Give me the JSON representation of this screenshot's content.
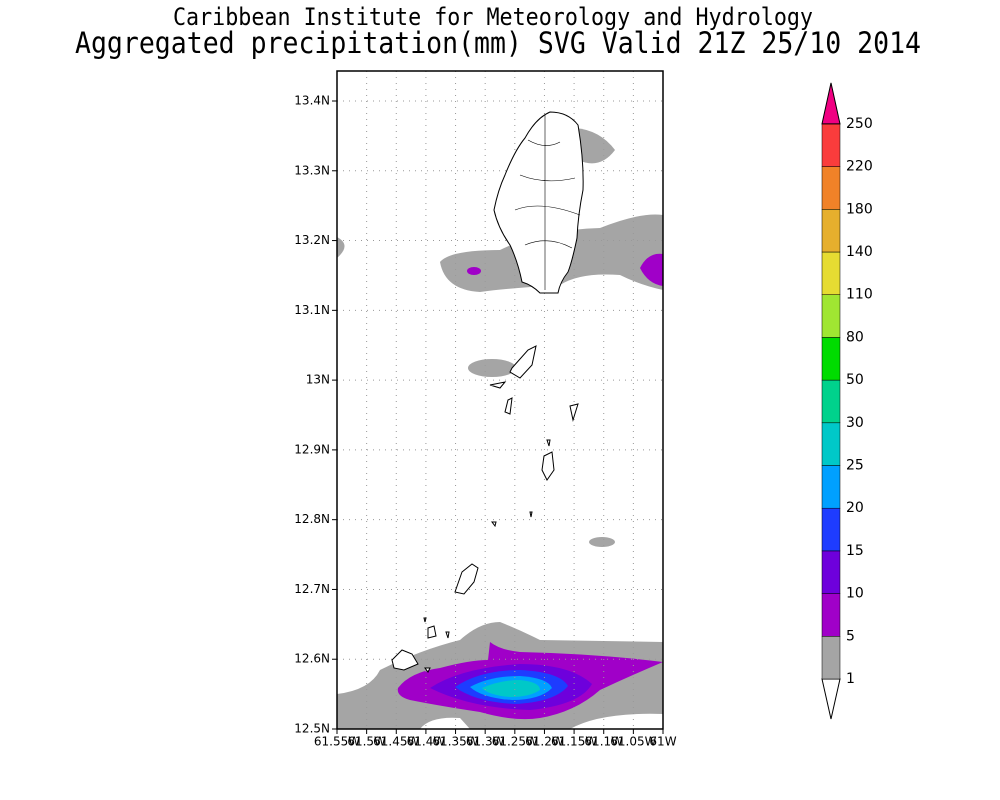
{
  "title": "Caribbean Institute for Meteorology and Hydrology",
  "subtitle": "Aggregated precipitation(mm) SVG Valid 21Z 25/10 2014",
  "map": {
    "lonlim": [
      -61.55,
      -61
    ],
    "latlim": [
      12.5,
      13.443
    ],
    "grid": true,
    "lat_ticks": [
      {
        "value": 12.5,
        "label": "12.5N"
      },
      {
        "value": 12.6,
        "label": "12.6N"
      },
      {
        "value": 12.7,
        "label": "12.7N"
      },
      {
        "value": 12.8,
        "label": "12.8N"
      },
      {
        "value": 12.9,
        "label": "12.9N"
      },
      {
        "value": 13,
        "label": "13N"
      },
      {
        "value": 13.1,
        "label": "13.1N"
      },
      {
        "value": 13.2,
        "label": "13.2N"
      },
      {
        "value": 13.3,
        "label": "13.3N"
      },
      {
        "value": 13.4,
        "label": "13.4N"
      }
    ],
    "lon_ticks": [
      {
        "value": -61.55,
        "label": "61.55W"
      },
      {
        "value": -61.5,
        "label": "61.5W"
      },
      {
        "value": -61.45,
        "label": "61.45W"
      },
      {
        "value": -61.4,
        "label": "61.4W"
      },
      {
        "value": -61.35,
        "label": "61.35W"
      },
      {
        "value": -61.3,
        "label": "61.3W"
      },
      {
        "value": -61.25,
        "label": "61.25W"
      },
      {
        "value": -61.2,
        "label": "61.2W"
      },
      {
        "value": -61.15,
        "label": "61.15W"
      },
      {
        "value": -61.1,
        "label": "61.1W"
      },
      {
        "value": -61.05,
        "label": "61.05W"
      },
      {
        "value": -61,
        "label": "61W"
      }
    ]
  },
  "legend": {
    "levels": [
      1,
      5,
      10,
      15,
      20,
      25,
      30,
      50,
      80,
      110,
      140,
      180,
      220,
      250
    ],
    "colors": [
      "#ffffff",
      "#a5a5a5",
      "#a000c8",
      "#6e00dc",
      "#1e3cff",
      "#00a0ff",
      "#00c8c8",
      "#00d28c",
      "#00dc00",
      "#a0e632",
      "#e6dc32",
      "#e6af2d",
      "#f08228",
      "#fa3c3c",
      "#f00082"
    ]
  }
}
